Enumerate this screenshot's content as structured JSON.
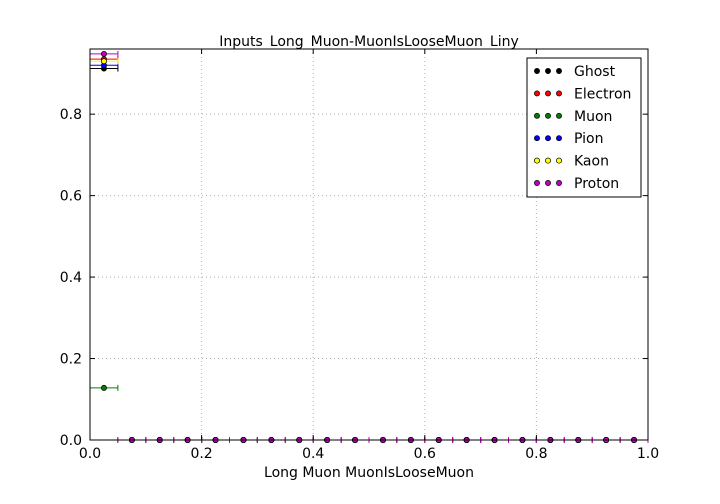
{
  "chart_data": {
    "type": "scatter",
    "title": "Inputs_Long_Muon-MuonIsLooseMuon_Liny",
    "xlabel": "Long Muon MuonIsLooseMuon",
    "ylabel": "",
    "xlim": [
      0.0,
      1.0
    ],
    "ylim": [
      0.0,
      0.96
    ],
    "x_ticks": [
      "0.0",
      "0.2",
      "0.4",
      "0.6",
      "0.8",
      "1.0"
    ],
    "y_ticks": [
      "0.0",
      "0.2",
      "0.4",
      "0.6",
      "0.8"
    ],
    "grid": true,
    "legend_position": "top-right",
    "bins": [
      0.0,
      0.05,
      0.1,
      0.15,
      0.2,
      0.25,
      0.3,
      0.35,
      0.4,
      0.45,
      0.5,
      0.55,
      0.6,
      0.65,
      0.7,
      0.75,
      0.8,
      0.85,
      0.9,
      0.95,
      1.0
    ],
    "x": [
      0.025,
      0.075,
      0.125,
      0.175,
      0.225,
      0.275,
      0.325,
      0.375,
      0.425,
      0.475,
      0.525,
      0.575,
      0.625,
      0.675,
      0.725,
      0.775,
      0.825,
      0.875,
      0.925,
      0.975
    ],
    "series": [
      {
        "name": "Ghost",
        "color": "#000000",
        "values": [
          0.912,
          0,
          0,
          0,
          0,
          0,
          0,
          0,
          0,
          0,
          0,
          0,
          0,
          0,
          0,
          0,
          0,
          0,
          0,
          0
        ]
      },
      {
        "name": "Electron",
        "color": "#ff0000",
        "values": [
          0.935,
          0,
          0,
          0,
          0,
          0,
          0,
          0,
          0,
          0,
          0,
          0,
          0,
          0,
          0,
          0,
          0,
          0,
          0,
          0
        ]
      },
      {
        "name": "Muon",
        "color": "#008000",
        "values": [
          0.128,
          0,
          0,
          0,
          0,
          0,
          0,
          0,
          0,
          0,
          0,
          0,
          0,
          0,
          0,
          0,
          0,
          0,
          0,
          0
        ]
      },
      {
        "name": "Pion",
        "color": "#0000ff",
        "values": [
          0.92,
          0,
          0,
          0,
          0,
          0,
          0,
          0,
          0,
          0,
          0,
          0,
          0,
          0,
          0,
          0,
          0,
          0,
          0,
          0
        ]
      },
      {
        "name": "Kaon",
        "color": "#ffff00",
        "values": [
          0.93,
          0,
          0,
          0,
          0,
          0,
          0,
          0,
          0,
          0,
          0,
          0,
          0,
          0,
          0,
          0,
          0,
          0,
          0,
          0
        ]
      },
      {
        "name": "Proton",
        "color": "#bf00bf",
        "values": [
          0.948,
          0,
          0,
          0,
          0,
          0,
          0,
          0,
          0,
          0,
          0,
          0,
          0,
          0,
          0,
          0,
          0,
          0,
          0,
          0
        ]
      }
    ]
  }
}
